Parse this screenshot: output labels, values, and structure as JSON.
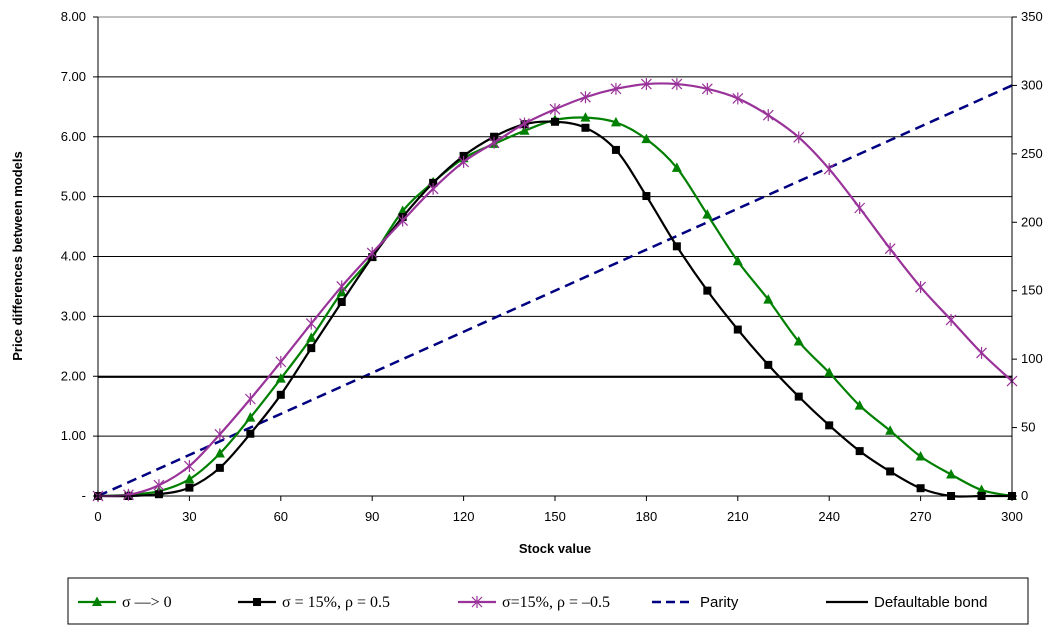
{
  "chart_data": {
    "type": "line",
    "xlabel": "Stock value",
    "ylabel": "Price differences between models",
    "xlim": [
      0,
      300
    ],
    "ylim": [
      0,
      8
    ],
    "y2lim": [
      0,
      350
    ],
    "xticks": [
      "0",
      "30",
      "60",
      "90",
      "120",
      "150",
      "180",
      "210",
      "240",
      "270",
      "300"
    ],
    "yticks": [
      "-",
      "1.00",
      "2.00",
      "3.00",
      "4.00",
      "5.00",
      "6.00",
      "7.00",
      "8.00"
    ],
    "y2ticks": [
      "0",
      "50",
      "100",
      "150",
      "200",
      "250",
      "300",
      "350"
    ],
    "grid": "horizontal",
    "legend_position": "bottom",
    "x": [
      0,
      10,
      20,
      30,
      40,
      50,
      60,
      70,
      80,
      90,
      100,
      110,
      120,
      130,
      140,
      150,
      160,
      170,
      180,
      190,
      200,
      210,
      220,
      230,
      240,
      250,
      260,
      270,
      280,
      290,
      300
    ],
    "series": [
      {
        "name": "σ ––> 0",
        "axis": "left",
        "color": "#008000",
        "marker": "triangle",
        "values": [
          0.0,
          0.02,
          0.08,
          0.28,
          0.71,
          1.31,
          1.96,
          2.64,
          3.4,
          4.0,
          4.76,
          5.24,
          5.64,
          5.88,
          6.1,
          6.28,
          6.32,
          6.24,
          5.96,
          5.48,
          4.7,
          3.92,
          3.28,
          2.58,
          2.06,
          1.51,
          1.09,
          0.66,
          0.36,
          0.1,
          0.0
        ]
      },
      {
        "name": "σ = 15%, ρ = 0.5",
        "axis": "left",
        "color": "#000000",
        "marker": "square",
        "values": [
          0.0,
          0.0,
          0.03,
          0.14,
          0.47,
          1.04,
          1.69,
          2.47,
          3.24,
          3.99,
          4.66,
          5.23,
          5.68,
          6.0,
          6.21,
          6.25,
          6.15,
          5.78,
          5.01,
          4.17,
          3.43,
          2.78,
          2.19,
          1.66,
          1.18,
          0.75,
          0.41,
          0.13,
          0.0,
          0.0,
          0.0
        ]
      },
      {
        "name": "σ=15%, ρ = –0.5",
        "axis": "left",
        "color": "#993399",
        "marker": "star",
        "values": [
          0.0,
          0.02,
          0.18,
          0.5,
          1.03,
          1.62,
          2.24,
          2.88,
          3.5,
          4.06,
          4.6,
          5.13,
          5.58,
          5.9,
          6.22,
          6.46,
          6.66,
          6.8,
          6.88,
          6.88,
          6.8,
          6.64,
          6.36,
          5.99,
          5.46,
          4.81,
          4.13,
          3.49,
          2.94,
          2.39,
          1.92
        ]
      },
      {
        "name": "Parity",
        "axis": "right",
        "color": "#000080",
        "line": "dashed",
        "x": [
          0,
          300
        ],
        "values": [
          0,
          300
        ]
      },
      {
        "name": "Defaultable bond",
        "axis": "left",
        "color": "#000000",
        "line": "solid",
        "x": [
          0,
          300
        ],
        "values": [
          1.99,
          1.99
        ]
      }
    ]
  }
}
